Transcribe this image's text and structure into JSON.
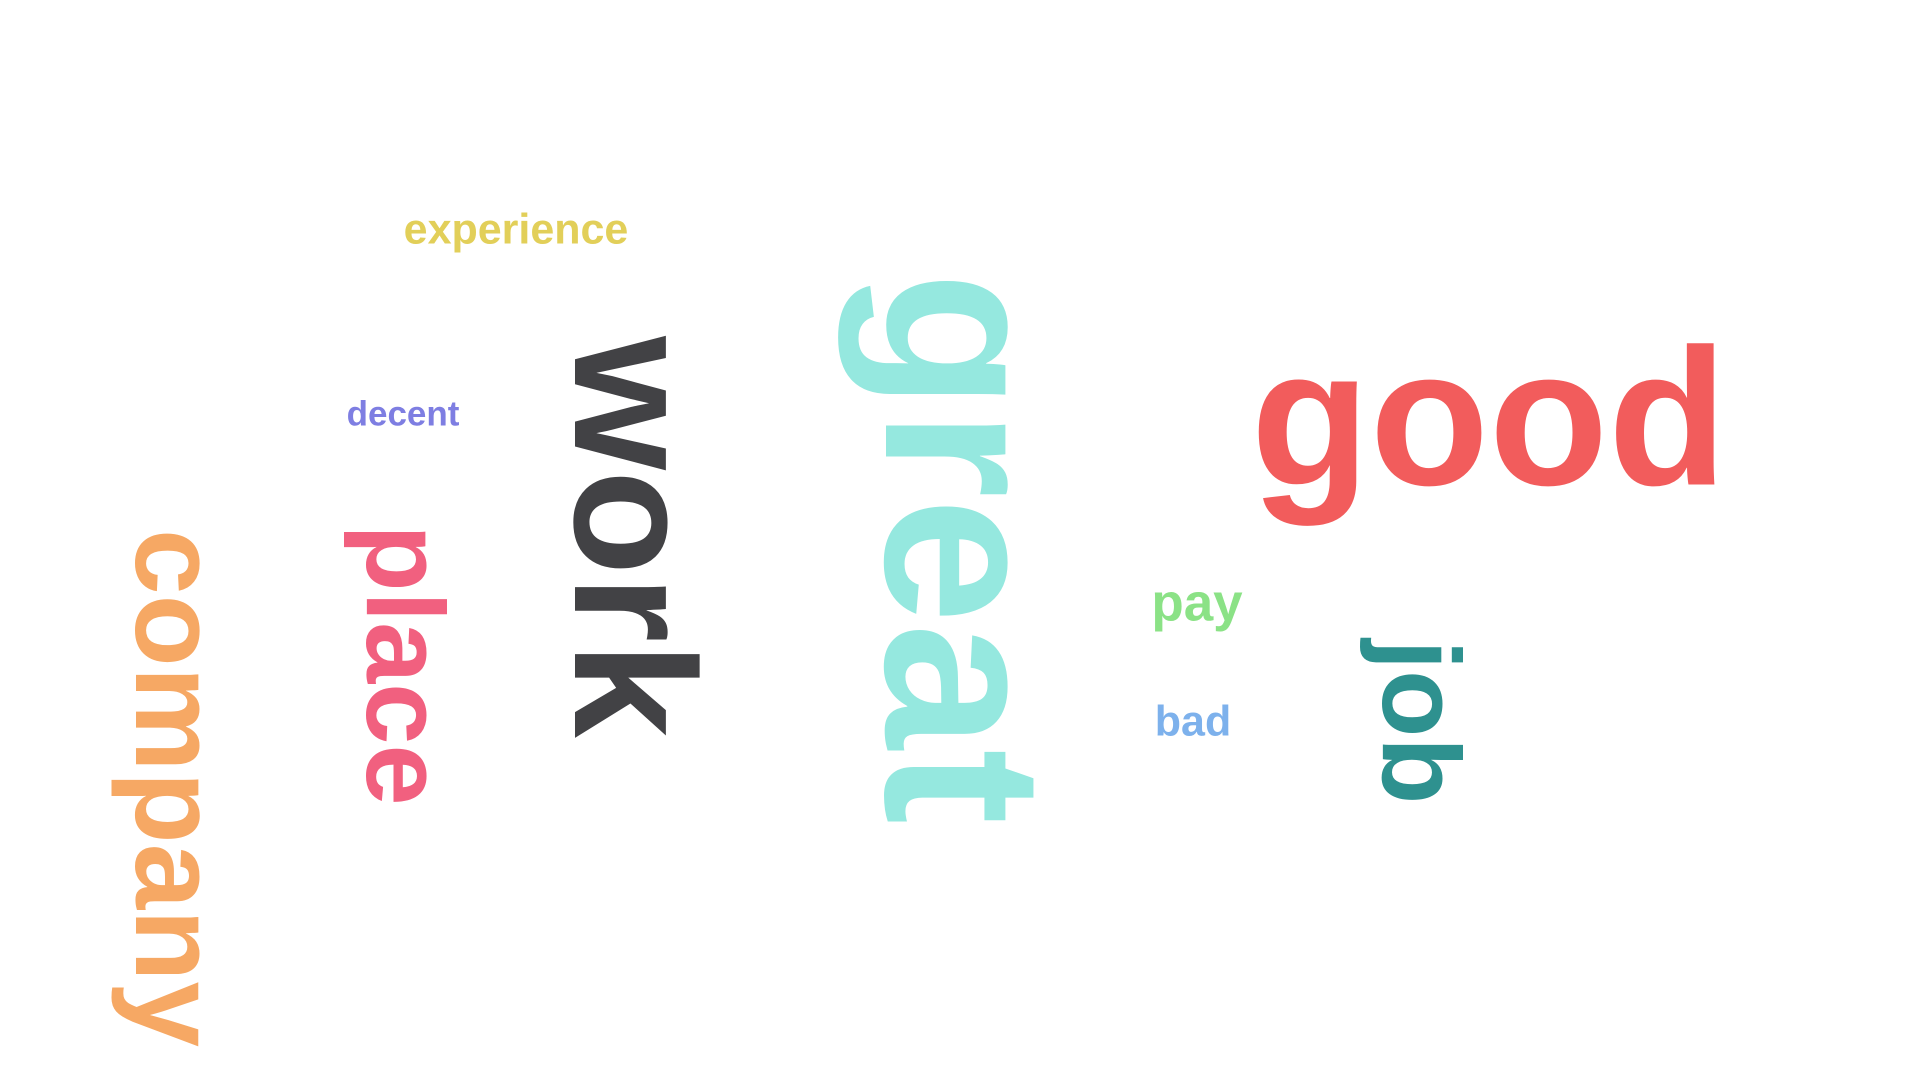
{
  "words": [
    {
      "text": "good",
      "color": "#F25C5C",
      "orientation": "horizontal"
    },
    {
      "text": "great",
      "color": "#95E8DF",
      "orientation": "vertical"
    },
    {
      "text": "work",
      "color": "#424245",
      "orientation": "vertical"
    },
    {
      "text": "company",
      "color": "#F6A864",
      "orientation": "vertical"
    },
    {
      "text": "place",
      "color": "#F1607F",
      "orientation": "vertical"
    },
    {
      "text": "job",
      "color": "#2E918F",
      "orientation": "vertical"
    },
    {
      "text": "experience",
      "color": "#E2CF59",
      "orientation": "horizontal"
    },
    {
      "text": "decent",
      "color": "#7E7EE2",
      "orientation": "horizontal"
    },
    {
      "text": "pay",
      "color": "#8BE286",
      "orientation": "horizontal"
    },
    {
      "text": "bad",
      "color": "#7DB1EC",
      "orientation": "horizontal"
    }
  ]
}
